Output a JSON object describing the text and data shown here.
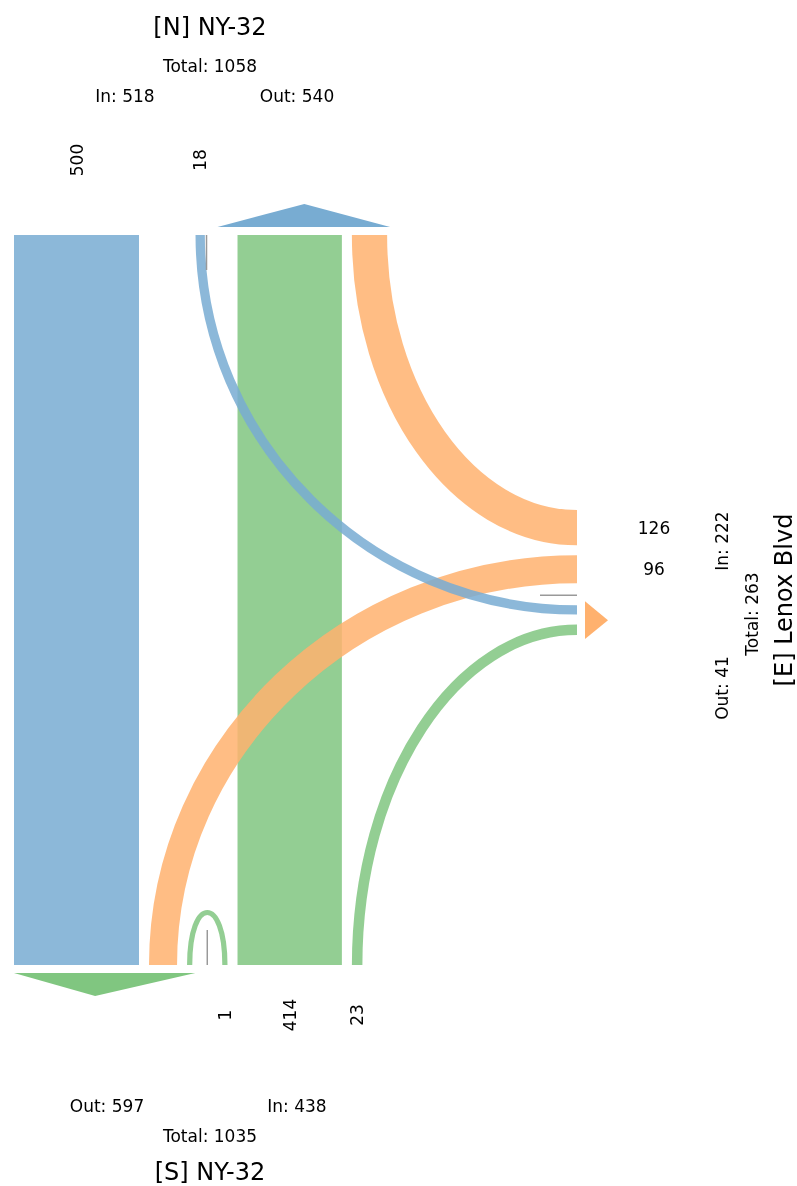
{
  "chart_data": {
    "type": "other",
    "categories": [
      "[N] NY-32",
      "[S] NY-32",
      "[E] Lenox Blvd"
    ],
    "series": [
      {
        "values": [
          null,
          414,
          126
        ],
        "colors": [
          null,
          "#80c680",
          "#ffb16e"
        ]
      },
      {
        "values": [
          500,
          1,
          96
        ],
        "colors": [
          "#78acd2",
          "#80c680",
          "#ffb16e"
        ]
      },
      {
        "values": [
          18,
          23,
          null
        ],
        "colors": [
          "#78acd2",
          "#80c680",
          null
        ]
      }
    ],
    "data_labels": true,
    "annotations": [
      "In: 518",
      "Out: 540",
      "Total: 1058",
      "In: 438",
      "Out: 597",
      "Total: 1035",
      "In: 222",
      "Out: 41",
      "Total: 263"
    ]
  }
}
